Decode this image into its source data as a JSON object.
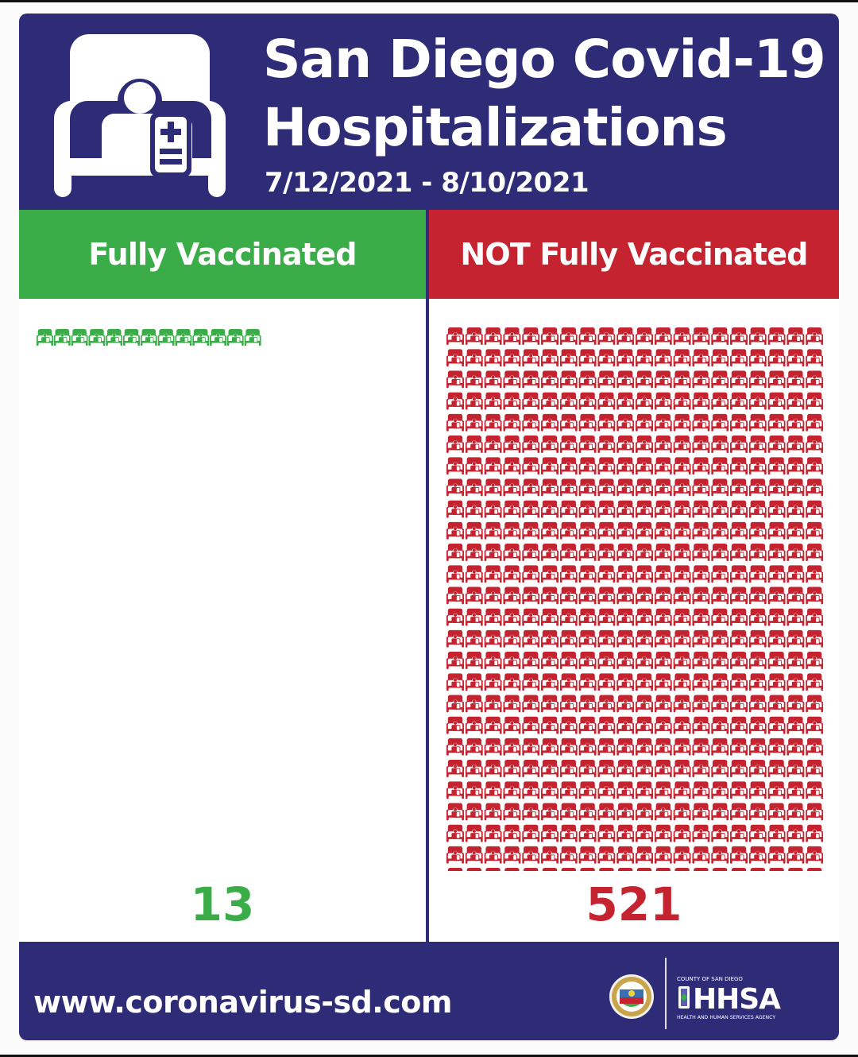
{
  "header": {
    "title_line1": "San Diego Covid-19",
    "title_line2": "Hospitalizations",
    "date_range": "7/12/2021 - 8/10/2021"
  },
  "chart_data": {
    "type": "pictogram",
    "title": "San Diego Covid-19 Hospitalizations",
    "subtitle": "7/12/2021 - 8/10/2021",
    "categories": [
      "Fully Vaccinated",
      "NOT Fully Vaccinated"
    ],
    "values": [
      13,
      521
    ],
    "value_labels": [
      "13",
      "521"
    ],
    "icons_per_row": 20,
    "colors": [
      "#3aad48",
      "#c4232f"
    ]
  },
  "colors": {
    "navy": "#2e2c76",
    "green": "#3aad48",
    "red": "#c4232f"
  },
  "icons": {
    "header": "hospital-bed-icon",
    "unit": "hospital-bed-icon"
  },
  "footer": {
    "website": "www.coronavirus-sd.com",
    "logo_text": "HHSA",
    "logo_top": "COUNTY OF SAN DIEGO",
    "logo_bottom": "HEALTH AND HUMAN SERVICES AGENCY"
  }
}
